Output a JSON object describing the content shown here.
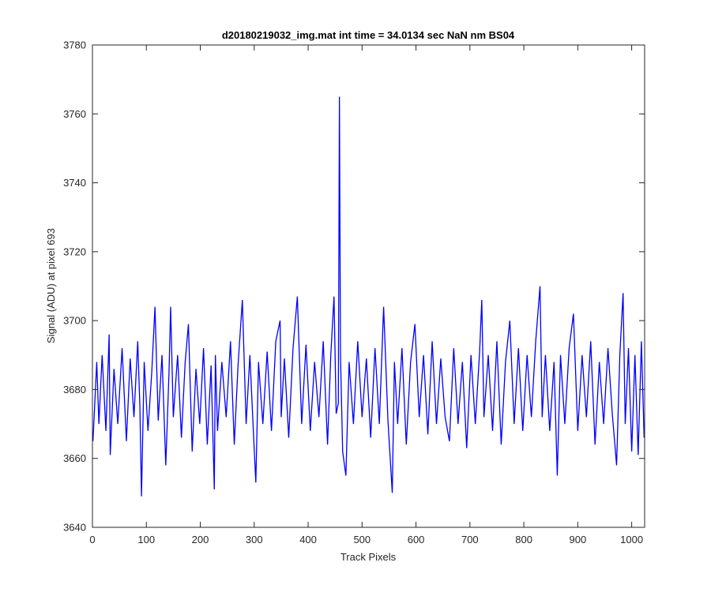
{
  "chart_data": {
    "type": "line",
    "title": "d20180219032_img.mat int time = 34.0134 sec  NaN nm BS04",
    "xlabel": "Track Pixels",
    "ylabel": "Signal (ADU) at pixel 693",
    "xlim": [
      0,
      1024
    ],
    "ylim": [
      3640,
      3780
    ],
    "xticks": [
      0,
      100,
      200,
      300,
      400,
      500,
      600,
      700,
      800,
      900,
      1000
    ],
    "yticks": [
      3640,
      3660,
      3680,
      3700,
      3720,
      3740,
      3760,
      3780
    ],
    "grid": false,
    "legend": "none",
    "series": [
      {
        "color": "#0000ff",
        "x": [
          1,
          8,
          12,
          18,
          25,
          31,
          33,
          40,
          47,
          55,
          63,
          70,
          77,
          84,
          88,
          91,
          96,
          103,
          110,
          116,
          122,
          129,
          136,
          142,
          145,
          150,
          158,
          165,
          172,
          178,
          185,
          192,
          199,
          206,
          213,
          220,
          226,
          228,
          232,
          240,
          248,
          256,
          263,
          270,
          278,
          285,
          292,
          299,
          303,
          308,
          316,
          324,
          332,
          340,
          348,
          350,
          356,
          364,
          372,
          380,
          388,
          396,
          404,
          412,
          420,
          428,
          436,
          442,
          448,
          452,
          456,
          458,
          460,
          464,
          470,
          476,
          484,
          492,
          500,
          508,
          516,
          524,
          532,
          540,
          548,
          556,
          560,
          566,
          574,
          582,
          590,
          598,
          606,
          614,
          622,
          630,
          638,
          646,
          654,
          662,
          670,
          678,
          686,
          694,
          702,
          710,
          718,
          722,
          726,
          734,
          742,
          750,
          758,
          766,
          774,
          782,
          790,
          798,
          806,
          814,
          822,
          830,
          834,
          840,
          848,
          856,
          862,
          868,
          876,
          884,
          892,
          900,
          908,
          916,
          924,
          932,
          940,
          948,
          956,
          964,
          972,
          978,
          984,
          988,
          994,
          1000,
          1006,
          1012,
          1018,
          1023
        ],
        "y": [
          3665,
          3688,
          3670,
          3690,
          3668,
          3696,
          3661,
          3686,
          3670,
          3692,
          3665,
          3689,
          3672,
          3694,
          3675,
          3649,
          3688,
          3668,
          3685,
          3704,
          3671,
          3690,
          3658,
          3685,
          3704,
          3672,
          3690,
          3666,
          3688,
          3699,
          3662,
          3686,
          3670,
          3692,
          3664,
          3687,
          3651,
          3690,
          3668,
          3688,
          3672,
          3694,
          3664,
          3687,
          3706,
          3670,
          3690,
          3666,
          3653,
          3688,
          3670,
          3691,
          3668,
          3694,
          3700,
          3672,
          3689,
          3666,
          3692,
          3707,
          3670,
          3693,
          3668,
          3688,
          3672,
          3694,
          3664,
          3690,
          3707,
          3673,
          3676,
          3765,
          3690,
          3662,
          3655,
          3688,
          3670,
          3694,
          3672,
          3689,
          3666,
          3692,
          3670,
          3704,
          3671,
          3650,
          3688,
          3670,
          3692,
          3664,
          3688,
          3699,
          3672,
          3690,
          3667,
          3694,
          3670,
          3689,
          3672,
          3665,
          3692,
          3670,
          3688,
          3663,
          3690,
          3670,
          3691,
          3706,
          3672,
          3690,
          3668,
          3694,
          3664,
          3688,
          3700,
          3670,
          3692,
          3668,
          3690,
          3672,
          3694,
          3710,
          3672,
          3690,
          3668,
          3688,
          3655,
          3690,
          3670,
          3692,
          3702,
          3668,
          3690,
          3672,
          3694,
          3664,
          3688,
          3670,
          3692,
          3673,
          3658,
          3690,
          3708,
          3670,
          3692,
          3662,
          3690,
          3661,
          3694,
          3666
        ]
      }
    ]
  }
}
